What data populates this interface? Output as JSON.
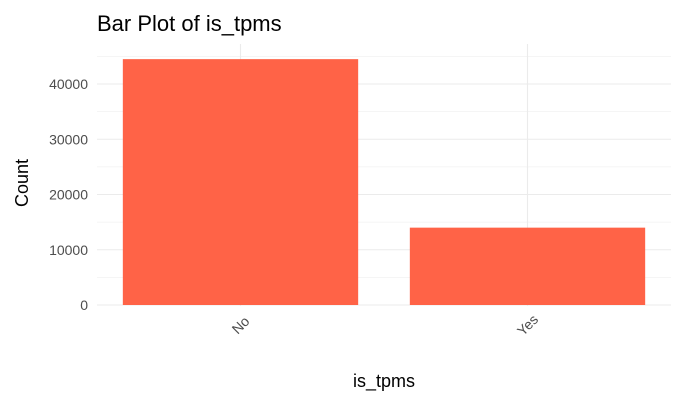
{
  "chart_data": {
    "type": "bar",
    "title": "Bar Plot of is_tpms",
    "xlabel": "is_tpms",
    "ylabel": "Count",
    "categories": [
      "No",
      "Yes"
    ],
    "values": [
      44500,
      14000
    ],
    "ylim": [
      0,
      46000
    ],
    "yticks": [
      0,
      10000,
      20000,
      30000,
      40000
    ],
    "ytick_labels": [
      "0",
      "10000",
      "20000",
      "30000",
      "40000"
    ],
    "bar_color": "#FF6347",
    "grid": true,
    "legend": "none"
  }
}
